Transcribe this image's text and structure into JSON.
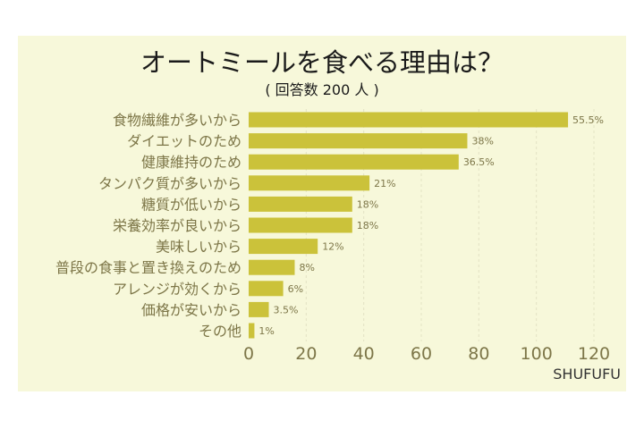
{
  "chart_data": {
    "type": "bar",
    "orientation": "horizontal",
    "title": "オートミールを食べる理由は？",
    "subtitle": "( 回答数 200 人 )",
    "categories": [
      "食物繊維が多いから",
      "ダイエットのため",
      "健康維持のため",
      "タンパク質が多いから",
      "糖質が低いから",
      "栄養効率が良いから",
      "美味しいから",
      "普段の食事と置き換えのため",
      "アレンジが効くから",
      "価格が安いから",
      "その他"
    ],
    "values": [
      111,
      76,
      73,
      42,
      36,
      36,
      24,
      16,
      12,
      7,
      2
    ],
    "data_labels": [
      "55.5%",
      "38%",
      "36.5%",
      "21%",
      "18%",
      "18%",
      "12%",
      "8%",
      "6%",
      "3.5%",
      "1%"
    ],
    "xlim": [
      0,
      120
    ],
    "xticks": [
      "0",
      "20",
      "40",
      "60",
      "80",
      "100",
      "120"
    ],
    "grid": "vertical dashed",
    "colors": {
      "bar": "#cbc23a",
      "background": "#f7f8da",
      "label": "#7d7648",
      "title": "#1a1a1a"
    }
  },
  "watermark": "SHUFUFU"
}
